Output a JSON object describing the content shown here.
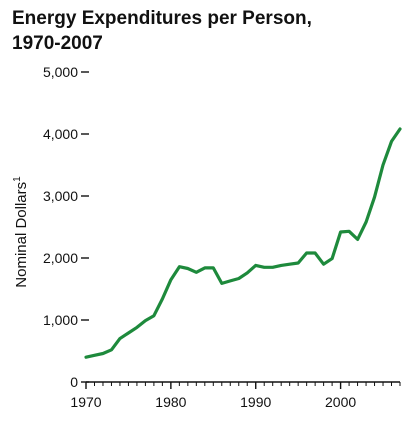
{
  "chart_data": {
    "type": "line",
    "title_lines": [
      "Energy Expenditures per Person,",
      "1970-2007"
    ],
    "xlabel": "",
    "ylabel": "Nominal Dollars",
    "ylabel_superscript": "1",
    "xlim": [
      1970,
      2007
    ],
    "ylim": [
      0,
      5000
    ],
    "x_ticks": [
      1970,
      1980,
      1990,
      2000
    ],
    "x_tick_labels": [
      "1970",
      "1980",
      "1990",
      "2000"
    ],
    "y_ticks": [
      0,
      1000,
      2000,
      3000,
      4000,
      5000
    ],
    "y_tick_labels": [
      "0",
      "1,000",
      "2,000",
      "3,000",
      "4,000",
      "5,000"
    ],
    "grid": false,
    "line_color": "#1e8a3c",
    "x": [
      1970,
      1971,
      1972,
      1973,
      1974,
      1975,
      1976,
      1977,
      1978,
      1979,
      1980,
      1981,
      1982,
      1983,
      1984,
      1985,
      1986,
      1987,
      1988,
      1989,
      1990,
      1991,
      1992,
      1993,
      1994,
      1995,
      1996,
      1997,
      1998,
      1999,
      2000,
      2001,
      2002,
      2003,
      2004,
      2005,
      2006,
      2007
    ],
    "values": [
      400,
      430,
      460,
      520,
      700,
      790,
      880,
      990,
      1070,
      1340,
      1650,
      1860,
      1830,
      1770,
      1840,
      1840,
      1590,
      1630,
      1670,
      1760,
      1880,
      1850,
      1850,
      1880,
      1900,
      1920,
      2080,
      2080,
      1900,
      1990,
      2420,
      2430,
      2300,
      2580,
      2980,
      3500,
      3880,
      4080
    ]
  }
}
